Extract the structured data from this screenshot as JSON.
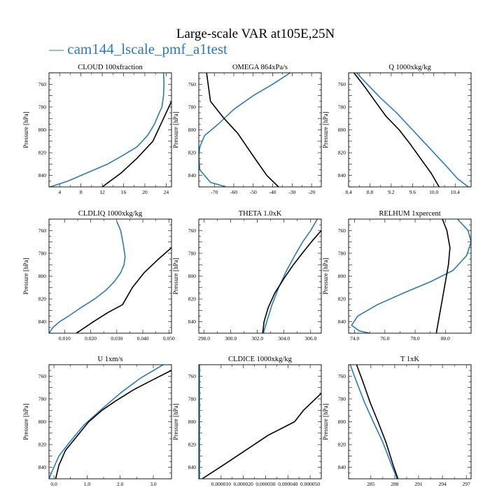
{
  "title": "Large-scale VAR at105E,25N",
  "legend": {
    "label": "— cam144_lscale_pmf_a1test",
    "color": "#2b7bba"
  },
  "colors": {
    "blue": "#2b7bba",
    "black": "#000000"
  },
  "chart_data": [
    {
      "type": "line",
      "title": "CLOUD 100xfraction",
      "ylabel": "Pressure [hPa]",
      "xlim": [
        2,
        25
      ],
      "xticks": [
        "4",
        "8",
        "12",
        "16",
        "20",
        "24"
      ],
      "xtickvals": [
        4,
        8,
        12,
        16,
        20,
        24
      ],
      "ylim": [
        850,
        750
      ],
      "yticks": [
        760,
        780,
        800,
        820,
        840
      ],
      "series": [
        {
          "color": "blue",
          "x": [
            23.5,
            23.6,
            23.5,
            23.2,
            22.7,
            21.8,
            20.5,
            18.5,
            16.0,
            13.0,
            9.0,
            5.5,
            2.2
          ],
          "y": [
            750,
            760,
            770,
            780,
            785,
            795,
            805,
            815,
            822,
            830,
            838,
            845,
            850
          ]
        },
        {
          "color": "black",
          "x": [
            25.0,
            24.5,
            23.5,
            22.5,
            21.5,
            18.5,
            15.5,
            12.0
          ],
          "y": [
            775,
            780,
            790,
            800,
            810,
            825,
            838,
            850
          ]
        }
      ]
    },
    {
      "type": "line",
      "title": "OMEGA 864xPa/s",
      "ylabel": "Pressure [hPa]",
      "xlim": [
        -78,
        -15
      ],
      "xticks": [
        "-70",
        "-60",
        "-50",
        "-40",
        "-30",
        "-20"
      ],
      "xtickvals": [
        -70,
        -60,
        -50,
        -40,
        -30,
        -20
      ],
      "ylim": [
        850,
        750
      ],
      "yticks": [
        760,
        780,
        800,
        820,
        840
      ],
      "series": [
        {
          "color": "blue",
          "x": [
            -31,
            -40,
            -50,
            -60,
            -68,
            -75,
            -77.5,
            -78,
            -77.5,
            -72,
            -64
          ],
          "y": [
            750,
            760,
            770,
            782,
            795,
            805,
            815,
            823,
            835,
            846,
            850
          ]
        },
        {
          "color": "black",
          "x": [
            -74,
            -72,
            -65,
            -58,
            -50,
            -43,
            -37
          ],
          "y": [
            750,
            775,
            790,
            803,
            823,
            840,
            850
          ]
        }
      ]
    },
    {
      "type": "line",
      "title": "Q 1000xkg/kg",
      "ylabel": "Pressure [hPa]",
      "xlim": [
        8.4,
        10.7
      ],
      "xticks": [
        "8.4",
        "8.8",
        "9.2",
        "9.6",
        "10.0",
        "10.4"
      ],
      "xtickvals": [
        8.4,
        8.8,
        9.2,
        9.6,
        10.0,
        10.4
      ],
      "ylim": [
        850,
        750
      ],
      "yticks": [
        760,
        780,
        800,
        820,
        840
      ],
      "series": [
        {
          "color": "blue",
          "x": [
            8.55,
            8.75,
            9.0,
            9.3,
            9.6,
            9.9,
            10.2,
            10.45,
            10.65
          ],
          "y": [
            750,
            760,
            772,
            785,
            800,
            815,
            830,
            843,
            850
          ]
        },
        {
          "color": "black",
          "x": [
            8.5,
            8.7,
            8.9,
            9.1,
            9.35,
            9.55,
            9.75,
            9.95,
            10.1
          ],
          "y": [
            750,
            762,
            775,
            788,
            800,
            812,
            825,
            838,
            850
          ]
        }
      ]
    },
    {
      "type": "line",
      "title": "CLDLIQ 1000xkg/kg",
      "ylabel": "Pressure [hPa]",
      "xlim": [
        0.004,
        0.051
      ],
      "xticks": [
        "0.010",
        "0.020",
        "0.030",
        "0.040",
        "0.050"
      ],
      "xtickvals": [
        0.01,
        0.02,
        0.03,
        0.04,
        0.05
      ],
      "ylim": [
        850,
        750
      ],
      "yticks": [
        760,
        780,
        800,
        820,
        840
      ],
      "series": [
        {
          "color": "blue",
          "x": [
            0.03,
            0.0315,
            0.0325,
            0.0332,
            0.0328,
            0.0315,
            0.029,
            0.026,
            0.0215,
            0.016,
            0.0115,
            0.008,
            0.0055,
            0.004
          ],
          "y": [
            752,
            760,
            772,
            783,
            790,
            797,
            805,
            812,
            820,
            828,
            835,
            840,
            845,
            850
          ]
        },
        {
          "color": "black",
          "x": [
            0.051,
            0.046,
            0.0405,
            0.036,
            0.0322,
            0.0265,
            0.021,
            0.0145
          ],
          "y": [
            775,
            785,
            797,
            810,
            825,
            832,
            840,
            850
          ]
        }
      ]
    },
    {
      "type": "line",
      "title": "THETA 1.0xK",
      "ylabel": "Pressure [hPa]",
      "xlim": [
        297.6,
        306.8
      ],
      "xticks": [
        "298.0",
        "300.0",
        "302.0",
        "304.0",
        "306.0"
      ],
      "xtickvals": [
        298,
        300,
        302,
        304,
        306
      ],
      "ylim": [
        850,
        750
      ],
      "yticks": [
        760,
        780,
        800,
        820,
        840
      ],
      "series": [
        {
          "color": "blue",
          "x": [
            306.5,
            306.0,
            305.4,
            304.8,
            304.2,
            303.6,
            303.1,
            302.7,
            302.45
          ],
          "y": [
            750,
            760,
            770,
            782,
            795,
            810,
            825,
            840,
            850
          ]
        },
        {
          "color": "black",
          "x": [
            306.8,
            306.2,
            305.5,
            304.7,
            304.0,
            303.3,
            302.8,
            302.5,
            302.4
          ],
          "y": [
            760,
            768,
            778,
            790,
            802,
            815,
            828,
            840,
            850
          ]
        }
      ]
    },
    {
      "type": "line",
      "title": "RELHUM 1xpercent",
      "ylabel": "Pressure [hPa]",
      "xlim": [
        73.6,
        81.7
      ],
      "xticks": [
        "74.0",
        "76.0",
        "78.0",
        "80.0"
      ],
      "xtickvals": [
        74,
        76,
        78,
        80
      ],
      "ylim": [
        850,
        750
      ],
      "yticks": [
        760,
        780,
        800,
        820,
        840
      ],
      "series": [
        {
          "color": "blue",
          "x": [
            80.8,
            81.5,
            81.7,
            81.4,
            80.5,
            79.0,
            77.2,
            75.5,
            74.2,
            73.8,
            74.3,
            75.0
          ],
          "y": [
            750,
            760,
            770,
            782,
            795,
            805,
            815,
            825,
            835,
            843,
            848,
            850
          ]
        },
        {
          "color": "black",
          "x": [
            79.8,
            80.1,
            80.3,
            80.2,
            80.0,
            79.8,
            79.6,
            79.4
          ],
          "y": [
            750,
            760,
            775,
            790,
            805,
            820,
            835,
            850
          ]
        }
      ]
    },
    {
      "type": "line",
      "title": "U 1xm/s",
      "ylabel": "Pressure [hPa]",
      "xlim": [
        -0.15,
        3.55
      ],
      "xticks": [
        "0.0",
        "1.0",
        "2.0",
        "3.0"
      ],
      "xtickvals": [
        0,
        1,
        2,
        3
      ],
      "ylim": [
        850,
        750
      ],
      "yticks": [
        760,
        780,
        800,
        820,
        840
      ],
      "series": [
        {
          "color": "blue",
          "x": [
            3.3,
            2.6,
            2.0,
            1.4,
            0.9,
            0.5,
            0.15,
            -0.05,
            -0.15
          ],
          "y": [
            750,
            762,
            775,
            790,
            803,
            817,
            830,
            843,
            850
          ]
        },
        {
          "color": "black",
          "x": [
            3.55,
            3.0,
            2.4,
            1.85,
            1.45,
            1.05,
            0.35,
            0.15,
            0.05
          ],
          "y": [
            755,
            763,
            772,
            782,
            790,
            800,
            825,
            838,
            850
          ]
        }
      ]
    },
    {
      "type": "line",
      "title": "CLDICE 1000xkg/kg",
      "ylabel": "Pressure [hPa]",
      "xlim": [
        0,
        5.5e-05
      ],
      "xticks": [
        "0.000010",
        "0.000020",
        "0.000030",
        "0.000040",
        "0.000050"
      ],
      "xtickvals": [
        1e-05,
        2e-05,
        3e-05,
        4e-05,
        5e-05
      ],
      "ylim": [
        850,
        750
      ],
      "yticks": [
        760,
        780,
        800,
        820,
        840
      ],
      "series": [
        {
          "color": "blue",
          "x": [
            3e-07,
            3e-07
          ],
          "y": [
            750,
            850
          ]
        },
        {
          "color": "black",
          "x": [
            5.5e-05,
            4.7e-05,
            4.3e-05,
            3.1e-05,
            2.1e-05,
            1.1e-05,
            1.5e-06
          ],
          "y": [
            775,
            790,
            800,
            812,
            825,
            838,
            850
          ]
        }
      ]
    },
    {
      "type": "line",
      "title": "T 1xK",
      "ylabel": "Pressure [hPa]",
      "xlim": [
        282.2,
        297.6
      ],
      "xticks": [
        "285",
        "288",
        "291",
        "294",
        "297"
      ],
      "xtickvals": [
        285,
        288,
        291,
        294,
        297
      ],
      "ylim": [
        850,
        750
      ],
      "yticks": [
        760,
        780,
        800,
        820,
        840
      ],
      "series": [
        {
          "color": "blue",
          "x": [
            282.4,
            283.2,
            284.2,
            285.3,
            286.5,
            287.6,
            288.3
          ],
          "y": [
            750,
            765,
            783,
            800,
            818,
            838,
            850
          ]
        },
        {
          "color": "black",
          "x": [
            283.2,
            284.0,
            284.9,
            285.9,
            286.9,
            287.8,
            288.4
          ],
          "y": [
            750,
            765,
            783,
            800,
            818,
            838,
            850
          ]
        }
      ]
    }
  ]
}
